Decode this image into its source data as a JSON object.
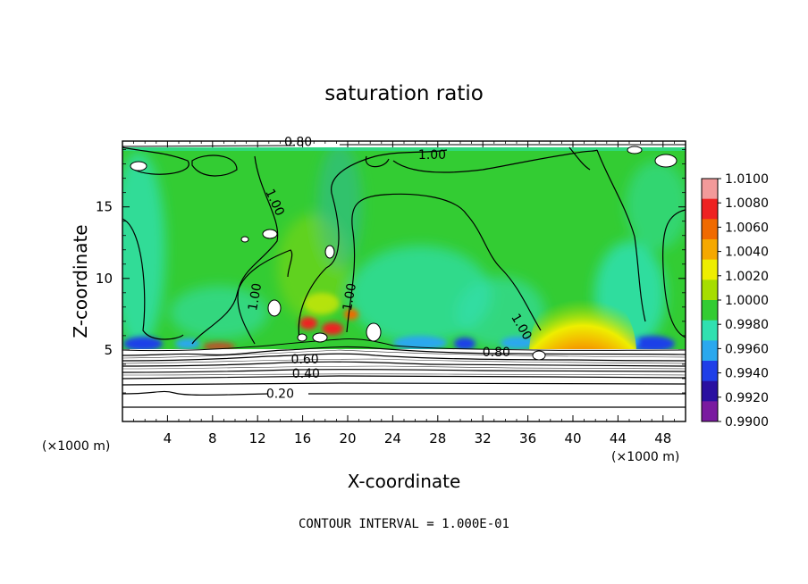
{
  "chart_data": {
    "type": "heatmap",
    "title": "saturation ratio",
    "xlabel": "X-coordinate",
    "ylabel": "Z-coordinate",
    "x_unit": "(×1000 m)",
    "z_unit": "(×1000 m)",
    "xlim": [
      0,
      50
    ],
    "ylim": [
      0,
      19.6
    ],
    "x_ticks": [
      4,
      8,
      12,
      16,
      20,
      24,
      28,
      32,
      36,
      40,
      44,
      48
    ],
    "y_ticks": [
      5,
      10,
      15
    ],
    "colorbar": {
      "levels": [
        "1.0100",
        "1.0080",
        "1.0060",
        "1.0040",
        "1.0020",
        "1.0000",
        "0.9980",
        "0.9960",
        "0.9940",
        "0.9920",
        "0.9900"
      ],
      "colors": [
        "#f29a9a",
        "#ee2222",
        "#f06a00",
        "#f5a800",
        "#eeee00",
        "#a6dd00",
        "#33cc33",
        "#30e0b0",
        "#2aa8ee",
        "#1f3fe8",
        "#2a10a0",
        "#7a1aa0"
      ]
    },
    "contour_labels": [
      {
        "text": "0.80",
        "x": 15.6,
        "z": 19.5
      },
      {
        "text": "1.00",
        "x": 27.5,
        "z": 18.6
      },
      {
        "text": "1.00",
        "x": 13.5,
        "z": 15.3
      },
      {
        "text": "1.00",
        "x": 11.8,
        "z": 8.7
      },
      {
        "text": "1.00",
        "x": 20.2,
        "z": 8.7
      },
      {
        "text": "1.00",
        "x": 35.4,
        "z": 6.6
      },
      {
        "text": "0.60",
        "x": 16.2,
        "z": 4.3
      },
      {
        "text": "0.40",
        "x": 16.3,
        "z": 3.3
      },
      {
        "text": "0.20",
        "x": 14.0,
        "z": 1.9
      },
      {
        "text": "0.80",
        "x": 33.2,
        "z": 4.8
      }
    ],
    "contour_interval_text": "CONTOUR INTERVAL = 1.000E-01"
  }
}
